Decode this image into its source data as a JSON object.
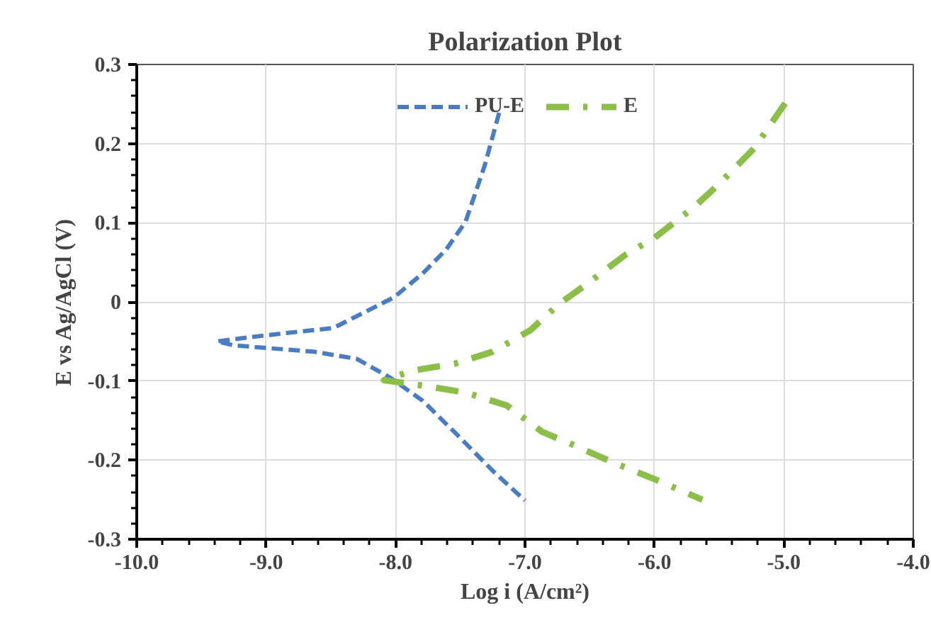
{
  "chart_data": {
    "type": "line",
    "title": "Polarization Plot",
    "xlabel": "Log i (A/cm²)",
    "ylabel": "E vs Ag/AgCl (V)",
    "xlim": [
      -10,
      -4
    ],
    "ylim": [
      -0.3,
      0.3
    ],
    "xticks": [
      {
        "value": -10,
        "label": "-10.0"
      },
      {
        "value": -9,
        "label": "-9.0"
      },
      {
        "value": -8,
        "label": "-8.0"
      },
      {
        "value": -7,
        "label": "-7.0"
      },
      {
        "value": -6,
        "label": "-6.0"
      },
      {
        "value": -5,
        "label": "-5.0"
      },
      {
        "value": -4,
        "label": "-4.0"
      }
    ],
    "yticks": [
      -0.3,
      -0.2,
      -0.1,
      0,
      0.1,
      0.2,
      0.3
    ],
    "grid": true,
    "legend": "top",
    "marker": "none",
    "series": [
      {
        "name": "PU-E",
        "color": "#4a7cc4",
        "line_style": "dashed",
        "x": [
          -7.2,
          -7.31,
          -7.46,
          -7.61,
          -7.79,
          -8.01,
          -8.48,
          -8.99,
          -9.38,
          -9.25,
          -8.63,
          -8.3,
          -8.04,
          -7.79,
          -7.53,
          -7.24,
          -7.0
        ],
        "values": [
          0.239,
          0.173,
          0.101,
          0.066,
          0.036,
          0.006,
          -0.033,
          -0.042,
          -0.05,
          -0.055,
          -0.063,
          -0.072,
          -0.096,
          -0.125,
          -0.167,
          -0.215,
          -0.251
        ]
      },
      {
        "name": "E",
        "color": "#8cbf4a",
        "line_style": "dashdot",
        "x": [
          -4.99,
          -5.23,
          -5.5,
          -5.7,
          -6.0,
          -6.22,
          -6.51,
          -6.74,
          -6.96,
          -7.25,
          -7.54,
          -7.87,
          -8.09,
          -7.78,
          -7.45,
          -7.14,
          -6.87,
          -6.61,
          -6.32,
          -6.0,
          -5.63
        ],
        "values": [
          0.251,
          0.194,
          0.149,
          0.119,
          0.081,
          0.06,
          0.024,
          -0.003,
          -0.036,
          -0.063,
          -0.078,
          -0.087,
          -0.099,
          -0.106,
          -0.115,
          -0.131,
          -0.164,
          -0.182,
          -0.203,
          -0.224,
          -0.25
        ]
      }
    ]
  }
}
